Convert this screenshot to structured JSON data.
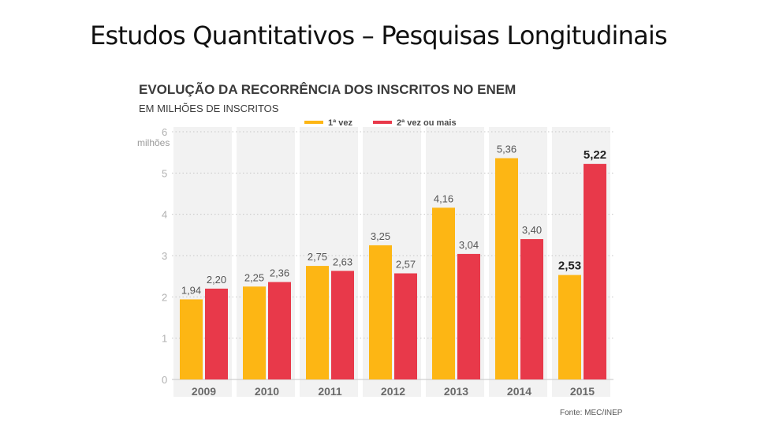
{
  "slide": {
    "title": "Estudos Quantitativos – Pesquisas Longitudinais"
  },
  "chart_data": {
    "type": "bar",
    "title": "EVOLUÇÃO DA RECORRÊNCIA DOS INSCRITOS NO ENEM",
    "subtitle": "EM MILHÕES DE INSCRITOS",
    "ylabel": "milhões",
    "ylim": [
      0,
      6
    ],
    "yticks": [
      0,
      1,
      2,
      3,
      4,
      5,
      6
    ],
    "categories": [
      "2009",
      "2010",
      "2011",
      "2012",
      "2013",
      "2014",
      "2015"
    ],
    "series": [
      {
        "name": "1ª vez",
        "color": "#FDB614",
        "values": [
          1.94,
          2.25,
          2.75,
          3.25,
          4.16,
          5.36,
          2.53
        ],
        "labels": [
          "1,94",
          "2,25",
          "2,75",
          "3,25",
          "4,16",
          "5,36",
          "2,53"
        ]
      },
      {
        "name": "2ª vez ou mais",
        "color": "#E8394A",
        "values": [
          2.2,
          2.36,
          2.63,
          2.57,
          3.04,
          3.4,
          5.22
        ],
        "labels": [
          "2,20",
          "2,36",
          "2,63",
          "2,57",
          "3,04",
          "3,40",
          "5,22"
        ]
      }
    ],
    "highlighted_category": "2015",
    "grid": "dotted-horizontal",
    "category_band_color": "#F2F2F2",
    "legend_position": "top",
    "source": "Fonte: MEC/INEP"
  }
}
